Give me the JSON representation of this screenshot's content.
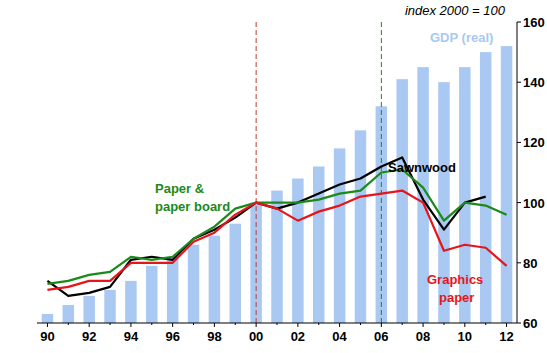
{
  "chart_data": {
    "type": "bar",
    "title": "index 2000 = 100",
    "categories": [
      "90",
      null,
      "92",
      null,
      "94",
      null,
      "96",
      null,
      "98",
      null,
      "00",
      null,
      "02",
      null,
      "04",
      null,
      "06",
      null,
      "08",
      null,
      "10",
      null,
      "12"
    ],
    "series": [
      {
        "name": "GDP (real)",
        "type": "bar",
        "color": "#a9c8f2",
        "values": [
          63,
          66,
          69,
          71,
          74,
          79,
          82,
          86,
          89,
          93,
          100,
          104,
          108,
          112,
          118,
          124,
          132,
          141,
          145,
          140,
          145,
          150,
          152
        ]
      },
      {
        "name": "Sawnwood",
        "type": "line",
        "color": "#000000",
        "values": [
          74,
          69,
          70,
          72,
          81,
          82,
          81,
          88,
          91,
          95,
          100,
          98,
          100,
          103,
          106,
          108,
          112,
          115,
          101,
          91,
          100,
          102,
          null
        ]
      },
      {
        "name": "Paper & paper board",
        "type": "line",
        "color": "#1a8a1a",
        "values": [
          73,
          74,
          76,
          77,
          82,
          81,
          82,
          88,
          92,
          98,
          100,
          100,
          100,
          101,
          103,
          104,
          110,
          111,
          105,
          94,
          100,
          99,
          96
        ]
      },
      {
        "name": "Graphics paper",
        "type": "line",
        "color": "#e8141c",
        "values": [
          71,
          72,
          74,
          74,
          80,
          80,
          80,
          87,
          90,
          96,
          100,
          98,
          94,
          97,
          99,
          102,
          103,
          104,
          100,
          84,
          86,
          85,
          79
        ]
      }
    ],
    "reference_lines": [
      {
        "x": "00",
        "color": "#c0392b",
        "line_style": "dashed"
      },
      {
        "x": "06",
        "color": "#1a8a1a",
        "line_style": "dashed"
      }
    ],
    "ylim": [
      60,
      160
    ],
    "yticks": [
      60,
      80,
      100,
      120,
      140,
      160
    ],
    "grid": false
  }
}
